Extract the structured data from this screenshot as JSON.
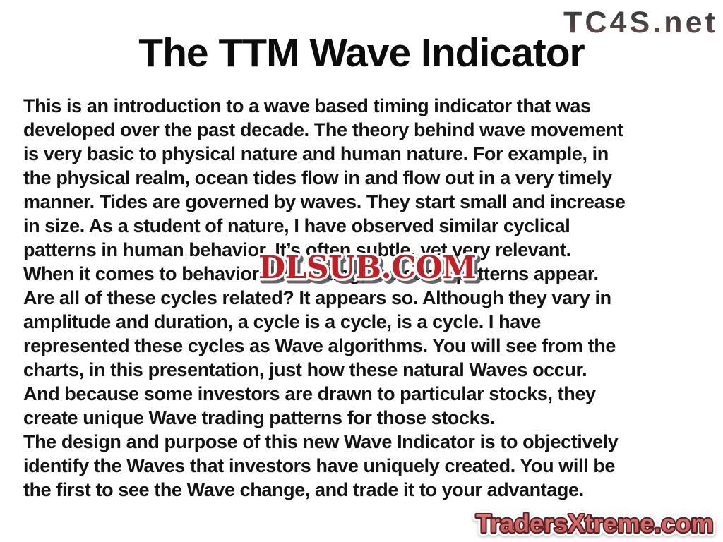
{
  "title": "The TTM Wave Indicator",
  "watermarks": {
    "tc4s": "TC4S.net",
    "dlsub": "DLSUB.COM",
    "tradersxtreme": "TradersXtreme.com"
  },
  "body": {
    "lines": [
      "This is an introduction to a wave based timing indicator that was",
      "developed over the past decade. The theory behind wave movement",
      "is very basic to physical nature and human nature. For example, in",
      "the physical realm, ocean tides flow in and flow out in a very timely",
      "manner. Tides are governed by waves. They start small and increase",
      "in size. As a student of nature, I have observed similar cyclical",
      "patterns in human behavior. It’s often subtle, yet very relevant.",
      "When it comes to behavioral investing, the same patterns appear.",
      "Are all of these cycles related? It appears so. Although they vary in",
      "amplitude and duration, a cycle is a cycle, is a cycle. I have",
      "represented these cycles as Wave algorithms. You will see from the",
      "charts, in this presentation, just how these natural Waves occur.",
      "And because some investors are drawn to particular stocks, they",
      "create unique Wave trading patterns for those stocks.",
      "The design and purpose of this new Wave Indicator is to objectively",
      "identify the Waves that investors have uniquely created. You will be",
      "the first to see the Wave change, and trade it to your advantage."
    ]
  },
  "colors": {
    "background": "#ffffff",
    "text": "#141414",
    "dlsub_red": "#c41e25",
    "dlsub_outline": "#ffffff",
    "dlsub_shadow": "#4a4a4a",
    "tc4s_gradient_top": "#3a3a3a",
    "tc4s_gradient_bottom": "#7a4f4c",
    "traders_fill_top": "#e08080",
    "traders_fill_bottom": "#c05252",
    "traders_outline": "#5a2020",
    "traders_glow": "#ffffff"
  }
}
